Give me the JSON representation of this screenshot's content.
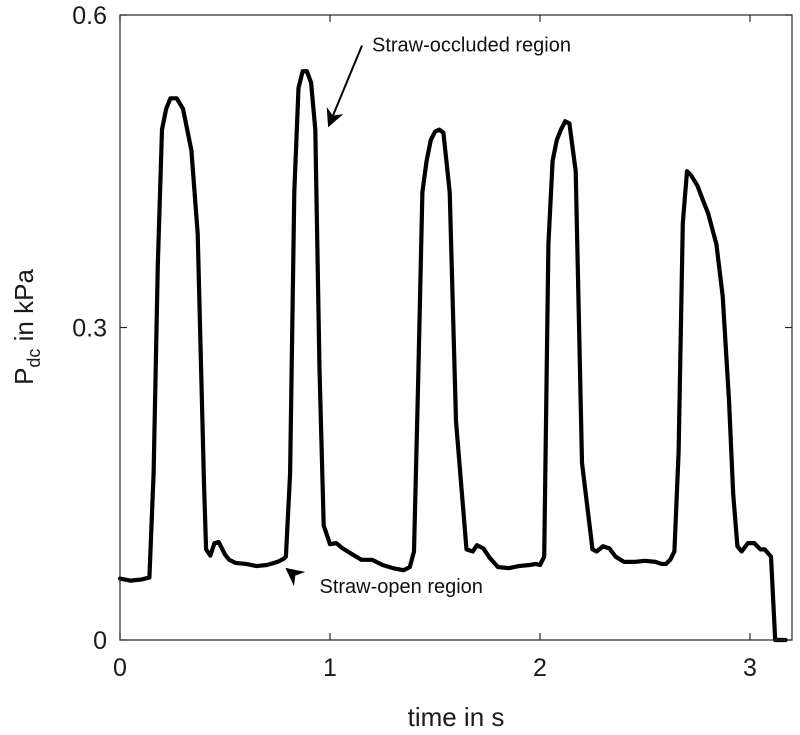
{
  "chart_data": {
    "type": "line",
    "title": "",
    "xlabel": "time in s",
    "ylabel": {
      "main": "P",
      "subscript": "dc",
      "suffix": " in kPa"
    },
    "xlim": [
      0,
      3.2
    ],
    "ylim": [
      0,
      0.6
    ],
    "xticks": [
      0,
      1,
      2,
      3
    ],
    "yticks": [
      0,
      0.3,
      0.6
    ],
    "xtick_labels": [
      "0",
      "1",
      "2",
      "3"
    ],
    "ytick_labels": [
      "0",
      "0.3",
      "0.6"
    ],
    "grid": false,
    "line_color": "#000000",
    "series": [
      {
        "x": [
          0.0,
          0.05,
          0.1,
          0.14,
          0.16,
          0.18,
          0.2,
          0.22,
          0.24,
          0.27,
          0.3,
          0.34,
          0.37,
          0.4,
          0.41,
          0.43,
          0.45,
          0.47,
          0.5,
          0.52,
          0.55,
          0.6,
          0.65,
          0.7,
          0.75,
          0.78,
          0.79,
          0.81,
          0.83,
          0.85,
          0.87,
          0.89,
          0.91,
          0.93,
          0.95,
          0.97,
          1.0,
          1.03,
          1.06,
          1.1,
          1.15,
          1.2,
          1.25,
          1.3,
          1.35,
          1.38,
          1.4,
          1.42,
          1.44,
          1.46,
          1.48,
          1.5,
          1.52,
          1.54,
          1.57,
          1.6,
          1.65,
          1.68,
          1.7,
          1.73,
          1.76,
          1.8,
          1.85,
          1.9,
          1.95,
          1.98,
          2.0,
          2.02,
          2.04,
          2.06,
          2.08,
          2.1,
          2.12,
          2.14,
          2.17,
          2.2,
          2.25,
          2.27,
          2.3,
          2.33,
          2.36,
          2.4,
          2.45,
          2.5,
          2.55,
          2.58,
          2.6,
          2.62,
          2.64,
          2.66,
          2.68,
          2.7,
          2.72,
          2.75,
          2.78,
          2.8,
          2.84,
          2.87,
          2.9,
          2.92,
          2.94,
          2.96,
          2.99,
          3.02,
          3.05,
          3.07,
          3.1,
          3.12,
          3.14,
          3.17
        ],
        "y": [
          0.059,
          0.057,
          0.058,
          0.06,
          0.16,
          0.36,
          0.49,
          0.51,
          0.52,
          0.52,
          0.51,
          0.47,
          0.39,
          0.15,
          0.087,
          0.081,
          0.093,
          0.094,
          0.082,
          0.077,
          0.074,
          0.073,
          0.071,
          0.072,
          0.075,
          0.078,
          0.08,
          0.16,
          0.43,
          0.53,
          0.546,
          0.546,
          0.535,
          0.49,
          0.26,
          0.11,
          0.092,
          0.093,
          0.088,
          0.083,
          0.077,
          0.077,
          0.072,
          0.069,
          0.067,
          0.07,
          0.085,
          0.25,
          0.43,
          0.46,
          0.48,
          0.488,
          0.49,
          0.487,
          0.43,
          0.21,
          0.087,
          0.085,
          0.091,
          0.088,
          0.079,
          0.07,
          0.069,
          0.071,
          0.072,
          0.073,
          0.072,
          0.08,
          0.38,
          0.46,
          0.48,
          0.49,
          0.498,
          0.496,
          0.45,
          0.17,
          0.087,
          0.085,
          0.09,
          0.088,
          0.08,
          0.075,
          0.075,
          0.076,
          0.075,
          0.073,
          0.073,
          0.077,
          0.085,
          0.18,
          0.4,
          0.45,
          0.446,
          0.436,
          0.42,
          0.41,
          0.38,
          0.33,
          0.23,
          0.14,
          0.09,
          0.085,
          0.093,
          0.093,
          0.087,
          0.087,
          0.08,
          0.0,
          0.0,
          0.0
        ]
      }
    ],
    "annotations": [
      {
        "text": "Straw-occluded region",
        "point_x": 0.98,
        "point_y": 0.49,
        "text_x": 1.2,
        "text_y": 0.565
      },
      {
        "text": "Straw-open region",
        "point_x": 0.78,
        "point_y": 0.072,
        "text_x": 0.95,
        "text_y": 0.045
      }
    ]
  }
}
